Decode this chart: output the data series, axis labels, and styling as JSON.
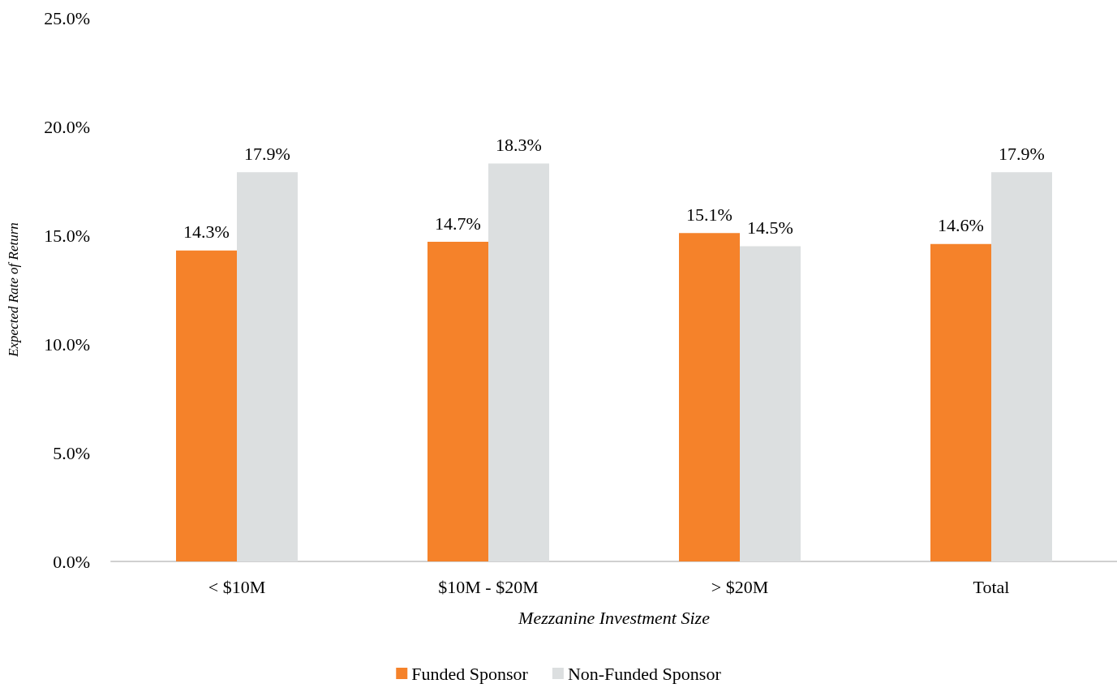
{
  "chart_data": {
    "type": "bar",
    "categories": [
      "< $10M",
      "$10M - $20M",
      "> $20M",
      "Total"
    ],
    "xlabel": "Mezzanine Investment Size",
    "ylabel": "Expected Rate of Return",
    "series": [
      {
        "name": "Funded Sponsor",
        "color": "#f5822a",
        "values": [
          14.3,
          14.7,
          15.1,
          14.6
        ],
        "value_labels": [
          "14.3%",
          "14.7%",
          "15.1%",
          "14.6%"
        ]
      },
      {
        "name": "Non-Funded Sponsor",
        "color": "#dcdfe0",
        "values": [
          17.9,
          18.3,
          14.5,
          17.9
        ],
        "value_labels": [
          "17.9%",
          "18.3%",
          "14.5%",
          "17.9%"
        ]
      }
    ],
    "ylim": [
      0,
      25
    ],
    "yticks": [
      {
        "value": 0,
        "label": "0.0%"
      },
      {
        "value": 5,
        "label": "5.0%"
      },
      {
        "value": 10,
        "label": "10.0%"
      },
      {
        "value": 15,
        "label": "15.0%"
      },
      {
        "value": 20,
        "label": "20.0%"
      },
      {
        "value": 25,
        "label": "25.0%"
      }
    ],
    "grid": false,
    "legend": "bottom"
  }
}
